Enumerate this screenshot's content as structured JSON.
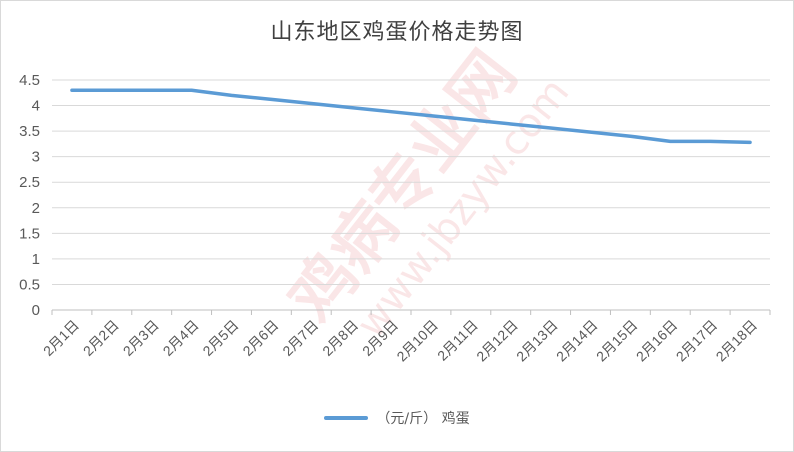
{
  "chart_data": {
    "type": "line",
    "title": "山东地区鸡蛋价格走势图",
    "categories": [
      "2月1日",
      "2月2日",
      "2月3日",
      "2月4日",
      "2月5日",
      "2月6日",
      "2月7日",
      "2月8日",
      "2月9日",
      "2月10日",
      "2月11日",
      "2月12日",
      "2月13日",
      "2月14日",
      "2月15日",
      "2月16日",
      "2月17日",
      "2月18日"
    ],
    "series": [
      {
        "name": "（元/斤） 鸡蛋",
        "color": "#5b9bd5",
        "values": [
          4.3,
          4.3,
          4.3,
          4.3,
          4.2,
          4.12,
          4.04,
          3.96,
          3.88,
          3.8,
          3.72,
          3.64,
          3.56,
          3.48,
          3.4,
          3.3,
          3.3,
          3.28
        ]
      }
    ],
    "ylim": [
      0,
      4.5
    ],
    "yticks": [
      "0",
      "0.5",
      "1",
      "1.5",
      "2",
      "2.5",
      "3",
      "3.5",
      "4",
      "4.5"
    ],
    "grid": true,
    "legend_position": "bottom"
  },
  "watermark": {
    "brand": "鸡病专业网",
    "url": "www.jbzyw.com",
    "color": "#e0474c"
  }
}
